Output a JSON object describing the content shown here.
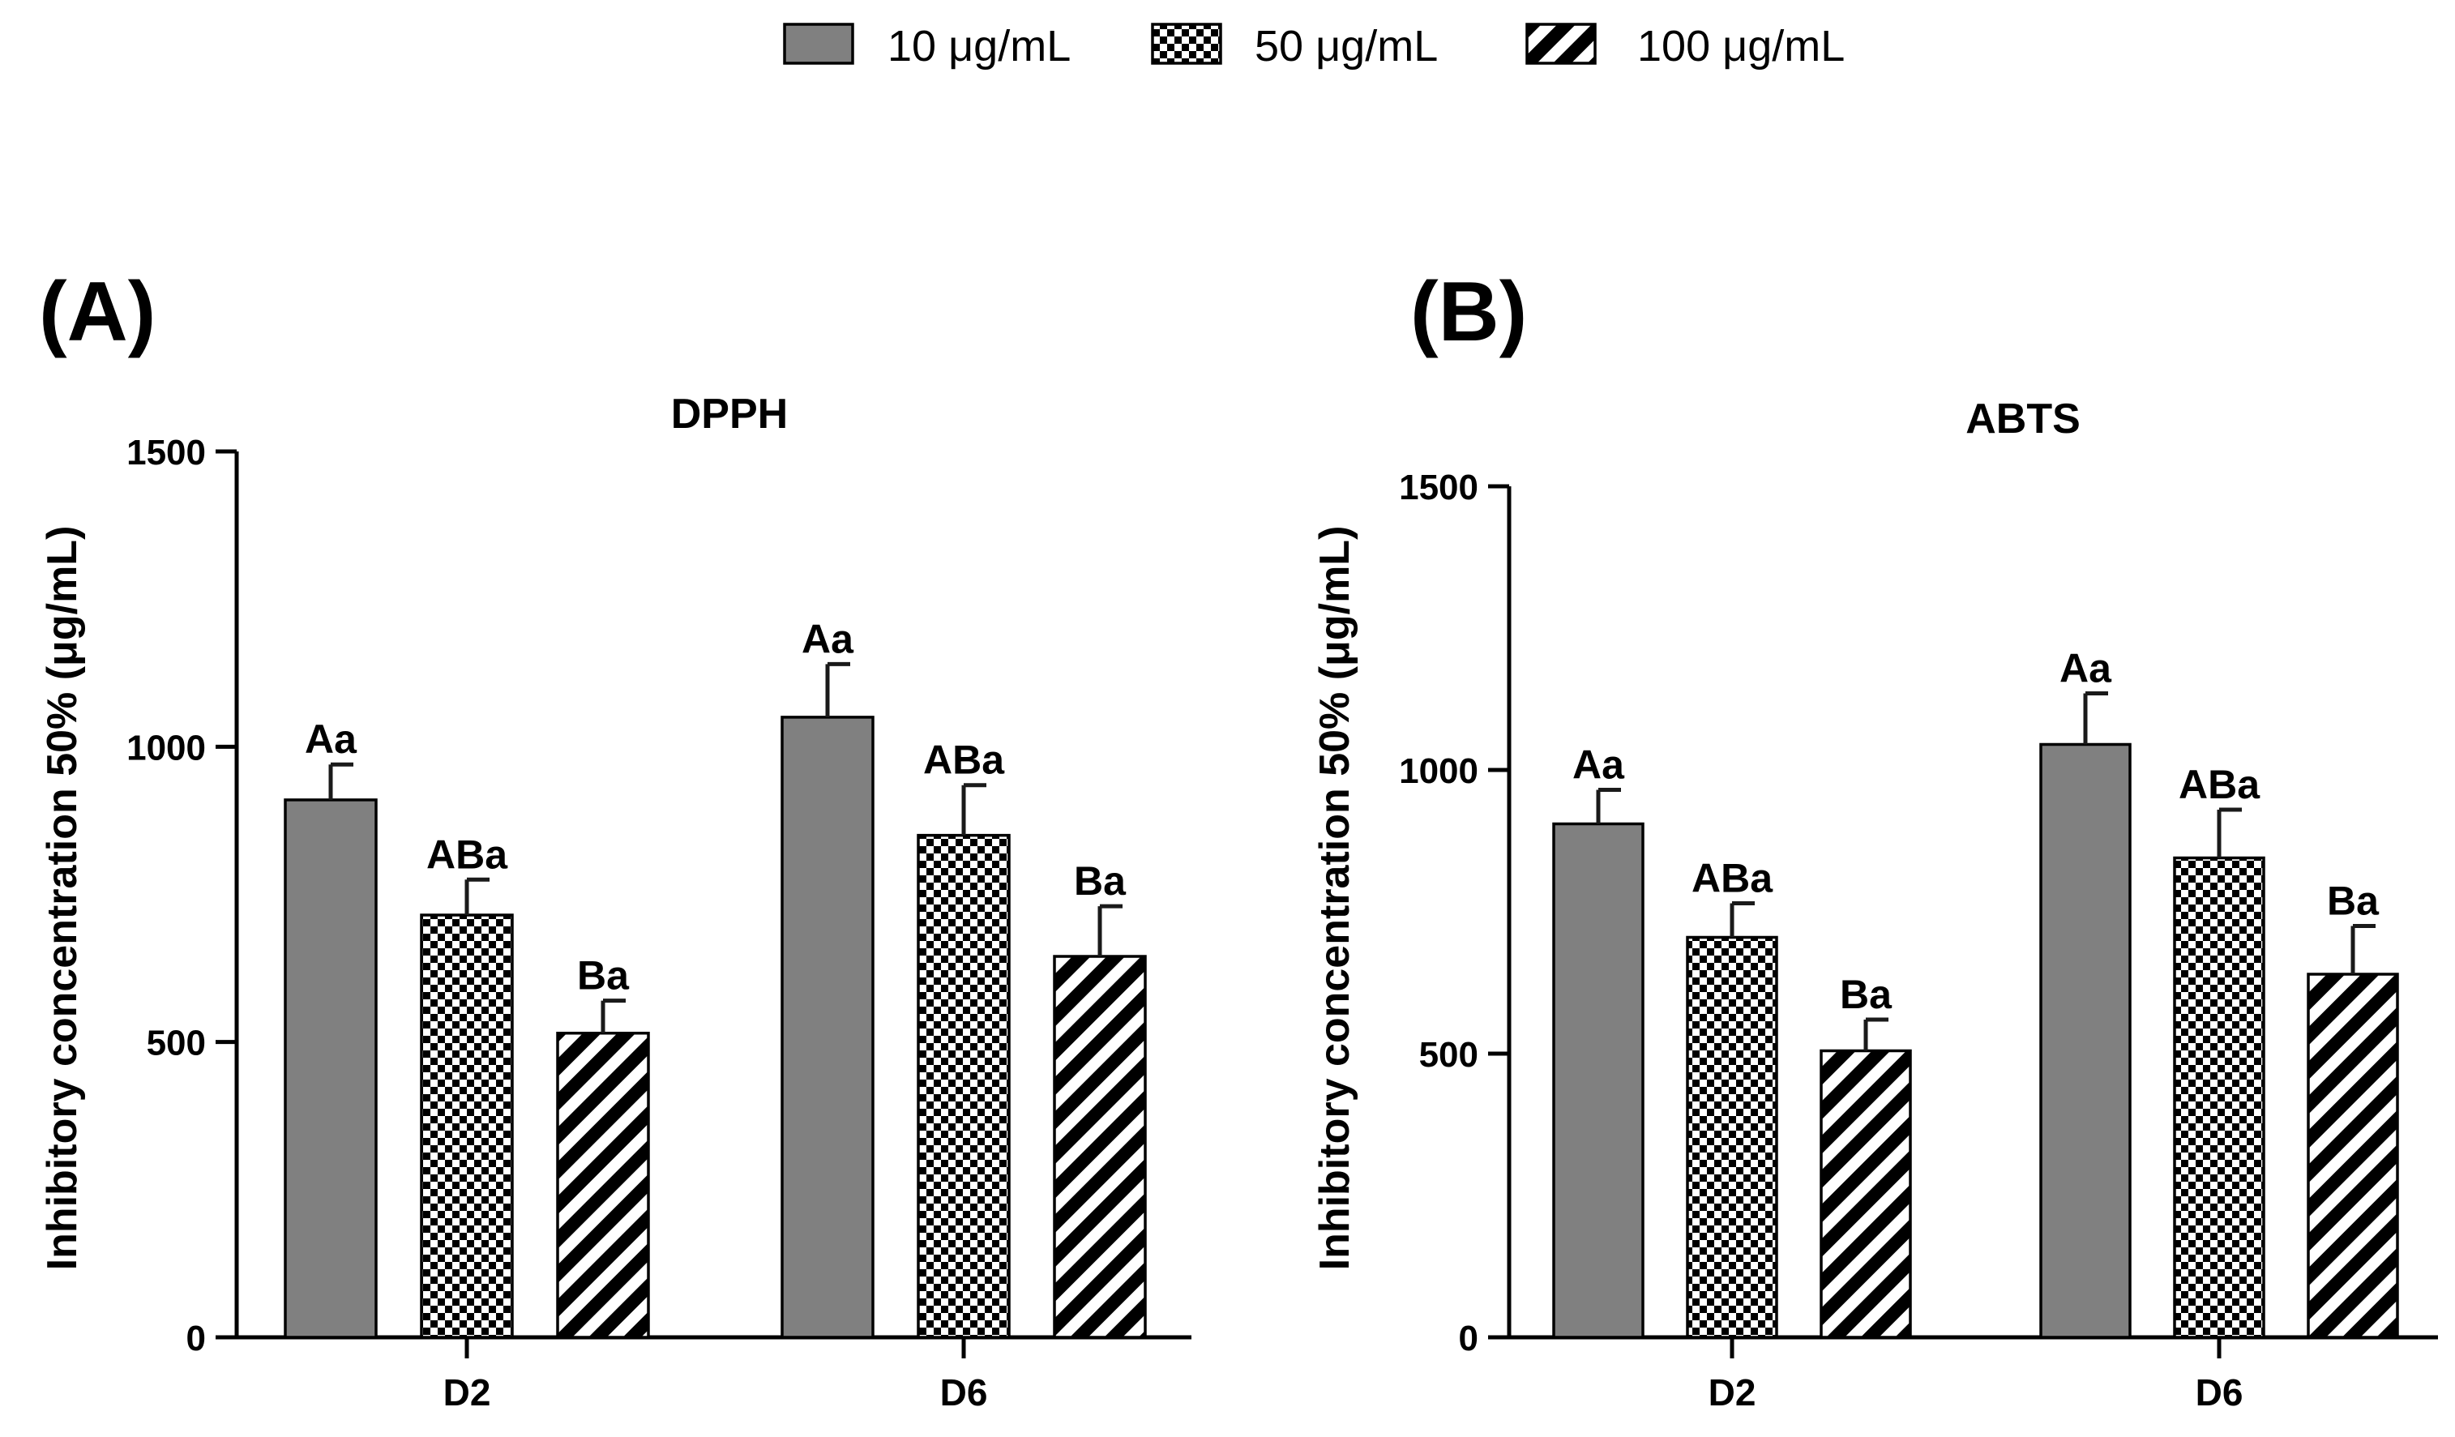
{
  "legend": {
    "items": [
      {
        "label": "10 μg/mL",
        "pattern": "solid"
      },
      {
        "label": "50 μg/mL",
        "pattern": "checker"
      },
      {
        "label": "100 μg/mL",
        "pattern": "stripes"
      }
    ]
  },
  "colors": {
    "solid_fill": "#808080",
    "pattern_dark": "#000000",
    "pattern_light": "#ffffff",
    "axis": "#000000"
  },
  "chart_data": [
    {
      "type": "bar",
      "panel_label": "(A)",
      "title": "DPPH",
      "ylabel": "Inhibitory concentration 50% (μg/mL)",
      "xlabel": "",
      "ylim": [
        0,
        1500
      ],
      "yticks": [
        0,
        500,
        1000,
        1500
      ],
      "categories": [
        "D2",
        "D6"
      ],
      "series": [
        {
          "name": "10 μg/mL",
          "values": [
            910,
            1050
          ],
          "errors": [
            60,
            90
          ],
          "labels": [
            "Aa",
            "Aa"
          ]
        },
        {
          "name": "50 μg/mL",
          "values": [
            715,
            850
          ],
          "errors": [
            60,
            85
          ],
          "labels": [
            "ABa",
            "ABa"
          ]
        },
        {
          "name": "100 μg/mL",
          "values": [
            515,
            645
          ],
          "errors": [
            55,
            85
          ],
          "labels": [
            "Ba",
            "Ba"
          ]
        }
      ]
    },
    {
      "type": "bar",
      "panel_label": "(B)",
      "title": "ABTS",
      "ylabel": "Inhibitory concentration 50% (μg/mL)",
      "xlabel": "",
      "ylim": [
        0,
        1500
      ],
      "yticks": [
        0,
        500,
        1000,
        1500
      ],
      "categories": [
        "D2",
        "D6"
      ],
      "series": [
        {
          "name": "10 μg/mL",
          "values": [
            905,
            1045
          ],
          "errors": [
            60,
            90
          ],
          "labels": [
            "Aa",
            "Aa"
          ]
        },
        {
          "name": "50 μg/mL",
          "values": [
            705,
            845
          ],
          "errors": [
            60,
            85
          ],
          "labels": [
            "ABa",
            "ABa"
          ]
        },
        {
          "name": "100 μg/mL",
          "values": [
            505,
            640
          ],
          "errors": [
            55,
            85
          ],
          "labels": [
            "Ba",
            "Ba"
          ]
        }
      ]
    }
  ]
}
